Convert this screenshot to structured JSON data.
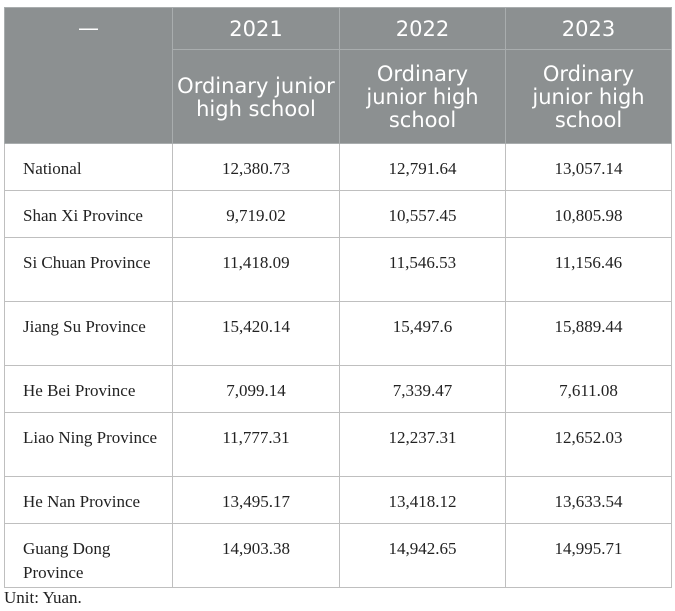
{
  "table": {
    "corner": "—",
    "years": [
      "2021",
      "2022",
      "2023"
    ],
    "subheaders": [
      "Ordinary junior high school",
      "Ordinary junior high school",
      "Ordinary junior high school"
    ],
    "rows": [
      {
        "label": "National",
        "values": [
          "12,380.73",
          "12,791.64",
          "13,057.14"
        ]
      },
      {
        "label": "Shan Xi Province",
        "values": [
          "9,719.02",
          "10,557.45",
          "10,805.98"
        ]
      },
      {
        "label": "Si Chuan Province",
        "values": [
          "11,418.09",
          "11,546.53",
          "11,156.46"
        ]
      },
      {
        "label": "Jiang Su Province",
        "values": [
          "15,420.14",
          "15,497.6",
          "15,889.44"
        ]
      },
      {
        "label": "He Bei Province",
        "values": [
          "7,099.14",
          "7,339.47",
          "7,611.08"
        ]
      },
      {
        "label": "Liao Ning Province",
        "values": [
          "11,777.31",
          "12,237.31",
          "12,652.03"
        ]
      },
      {
        "label": "He Nan Province",
        "values": [
          "13,495.17",
          "13,418.12",
          "13,633.54"
        ]
      },
      {
        "label": "Guang Dong Province",
        "values": [
          "14,903.38",
          "14,942.65",
          "14,995.71"
        ]
      }
    ]
  },
  "caption": "Unit: Yuan.",
  "colors": {
    "header_bg": "#8c9091",
    "header_text": "#ffffff"
  }
}
